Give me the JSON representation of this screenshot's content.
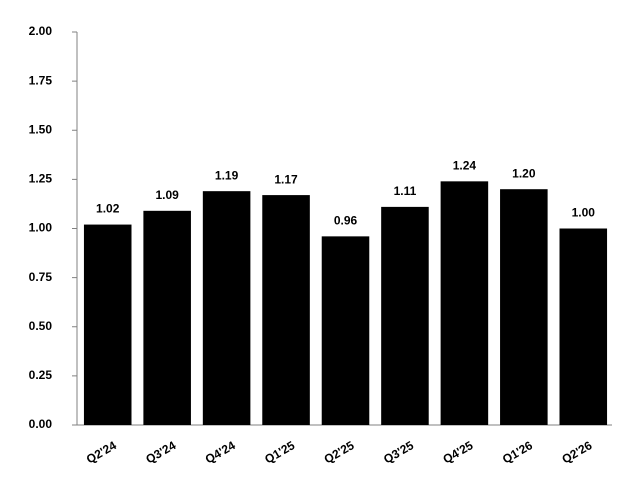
{
  "chart_data": {
    "type": "bar",
    "categories": [
      "Q2'24",
      "Q3'24",
      "Q4'24",
      "Q1'25",
      "Q2'25",
      "Q3'25",
      "Q4'25",
      "Q1'26",
      "Q2'26"
    ],
    "values": [
      1.02,
      1.09,
      1.19,
      1.17,
      0.96,
      1.11,
      1.24,
      1.2,
      1.0
    ],
    "value_labels": [
      "1.02",
      "1.09",
      "1.19",
      "1.17",
      "0.96",
      "1.11",
      "1.24",
      "1.20",
      "1.00"
    ],
    "color": "#000000",
    "ylim": [
      0,
      2
    ],
    "yticks": [
      {
        "value": 0,
        "label": "0.00"
      },
      {
        "value": 0.25,
        "label": "0.25"
      },
      {
        "value": 0.5,
        "label": "0.50"
      },
      {
        "value": 0.75,
        "label": "0.75"
      },
      {
        "value": 1,
        "label": "1.00"
      },
      {
        "value": 1.25,
        "label": "1.25"
      },
      {
        "value": 1.5,
        "label": "1.50"
      },
      {
        "value": 1.75,
        "label": "1.75"
      },
      {
        "value": 2,
        "label": "2.00"
      }
    ],
    "grid": false
  }
}
